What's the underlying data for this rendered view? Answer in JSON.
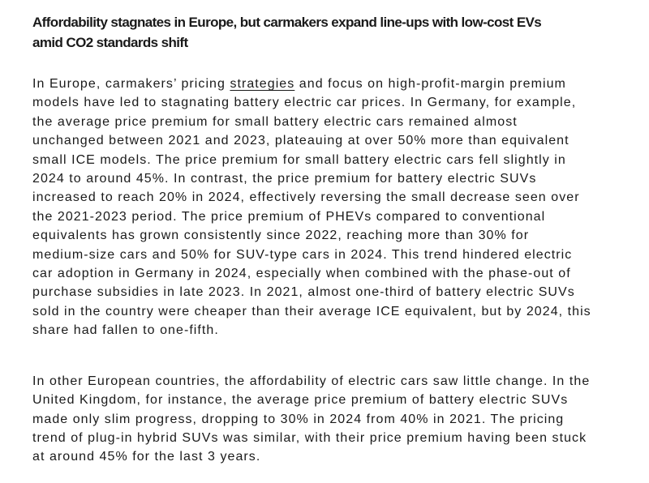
{
  "page": {
    "background_color": "#ffffff",
    "text_color": "#1a1a1a"
  },
  "article": {
    "title": "Affordability stagnates in Europe, but carmakers expand line-ups with low-cost EVs amid CO2 standards shift",
    "title_lines": [
      "Affordability stagnates in Europe, but carmakers expand line-ups with low-cost EVs",
      "amid CO2 standards shift"
    ],
    "link_label": "strategies",
    "paragraphs": [
      {
        "lines": [
          {
            "pre": "In Europe, carmakers’ pricing ",
            "link": "strategies",
            "post": " and focus on high-profit-margin premium"
          },
          "models have led to stagnating battery electric car prices. In Germany, for example,",
          "the average price premium for small battery electric cars remained almost",
          "unchanged between 2021 and 2023, plateauing at over 50% more than equivalent",
          "small ICE models. The price premium for small battery electric cars fell slightly in",
          "2024 to around 45%. In contrast, the price premium for battery electric SUVs",
          "increased to reach 20% in 2024, effectively reversing the small decrease seen over",
          "the 2021-2023 period. The price premium of PHEVs compared to conventional",
          "equivalents has grown consistently since 2022, reaching more than 30% for",
          "medium-size cars and 50% for SUV-type cars in 2024. This trend hindered electric",
          "car adoption in Germany in 2024, especially when combined with the phase-out of",
          "purchase subsidies in late 2023. In 2021, almost one-third of battery electric SUVs",
          "sold in the country were cheaper than their average ICE equivalent, but by 2024, this",
          "share had fallen to one-fifth."
        ]
      },
      {
        "lines": [
          "In other European countries, the affordability of electric cars saw little change. In the",
          "United Kingdom, for instance, the average price premium of battery electric SUVs",
          "made only slim progress, dropping to 30% in 2024 from 40% in 2021. The pricing",
          "trend of plug-in hybrid SUVs was similar, with their price premium having been stuck",
          "at around 45% for the last 3 years."
        ]
      }
    ]
  }
}
